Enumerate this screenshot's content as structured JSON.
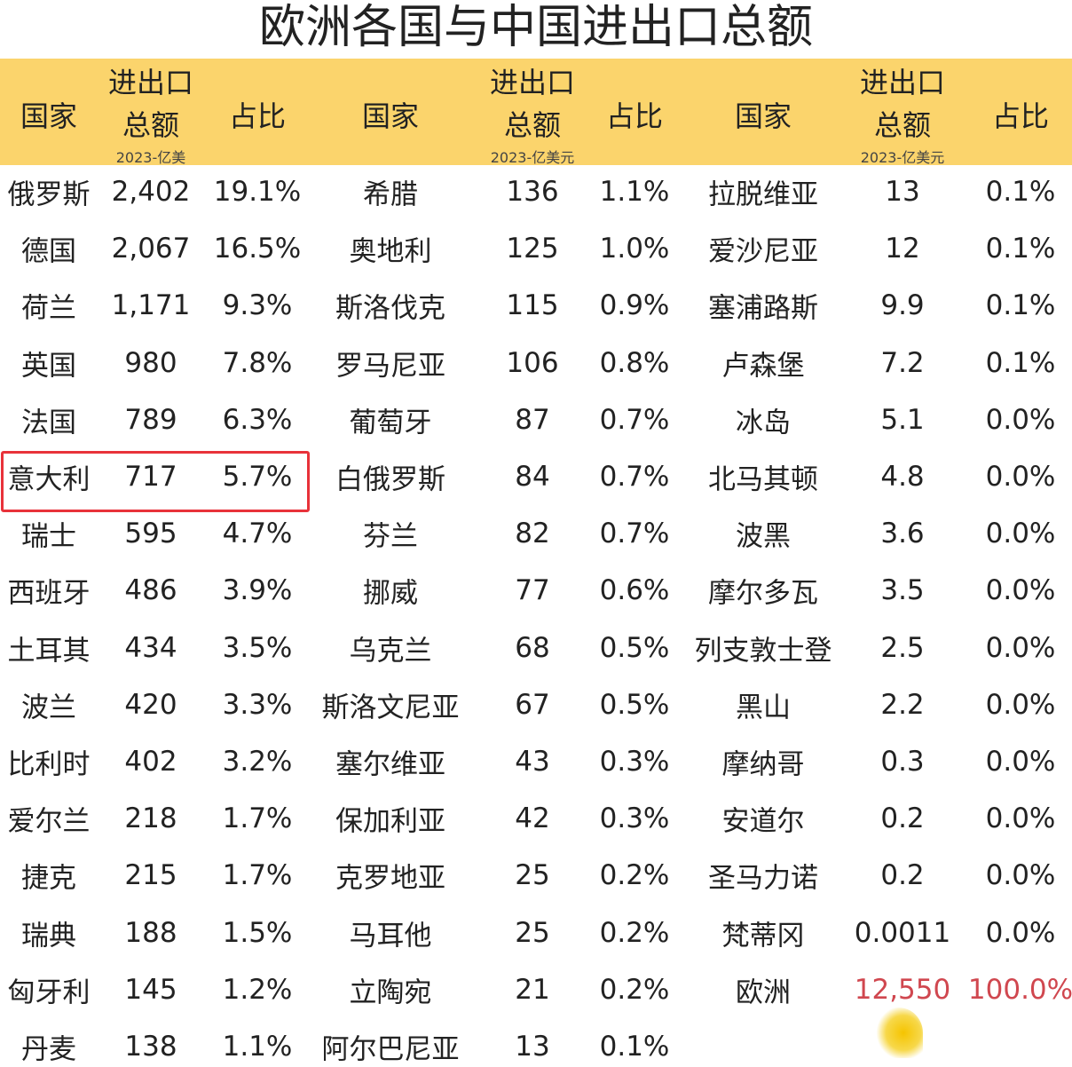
{
  "title": "欧洲各国与中国进出口总额",
  "header": {
    "country": "国家",
    "total_line1": "进出口",
    "total_line2": "总额",
    "share": "占比",
    "unit_1": "2023-亿美",
    "unit_2": "2023-亿美元",
    "unit_3": "2023-亿美元"
  },
  "colors": {
    "header_bg": "#fbd46c",
    "highlight": "#e8323a",
    "total_text": "#d0474f"
  },
  "chart_data": {
    "type": "table",
    "title": "欧洲各国与中国进出口总额",
    "columns": [
      "国家",
      "进出口总额 2023-亿美元",
      "占比"
    ],
    "highlighted_row": "意大利",
    "groups": [
      [
        [
          "俄罗斯",
          "2,402",
          "19.1%"
        ],
        [
          "德国",
          "2,067",
          "16.5%"
        ],
        [
          "荷兰",
          "1,171",
          "9.3%"
        ],
        [
          "英国",
          "980",
          "7.8%"
        ],
        [
          "法国",
          "789",
          "6.3%"
        ],
        [
          "意大利",
          "717",
          "5.7%"
        ],
        [
          "瑞士",
          "595",
          "4.7%"
        ],
        [
          "西班牙",
          "486",
          "3.9%"
        ],
        [
          "土耳其",
          "434",
          "3.5%"
        ],
        [
          "波兰",
          "420",
          "3.3%"
        ],
        [
          "比利时",
          "402",
          "3.2%"
        ],
        [
          "爱尔兰",
          "218",
          "1.7%"
        ],
        [
          "捷克",
          "215",
          "1.7%"
        ],
        [
          "瑞典",
          "188",
          "1.5%"
        ],
        [
          "匈牙利",
          "145",
          "1.2%"
        ],
        [
          "丹麦",
          "138",
          "1.1%"
        ]
      ],
      [
        [
          "希腊",
          "136",
          "1.1%"
        ],
        [
          "奥地利",
          "125",
          "1.0%"
        ],
        [
          "斯洛伐克",
          "115",
          "0.9%"
        ],
        [
          "罗马尼亚",
          "106",
          "0.8%"
        ],
        [
          "葡萄牙",
          "87",
          "0.7%"
        ],
        [
          "白俄罗斯",
          "84",
          "0.7%"
        ],
        [
          "芬兰",
          "82",
          "0.7%"
        ],
        [
          "挪威",
          "77",
          "0.6%"
        ],
        [
          "乌克兰",
          "68",
          "0.5%"
        ],
        [
          "斯洛文尼亚",
          "67",
          "0.5%"
        ],
        [
          "塞尔维亚",
          "43",
          "0.3%"
        ],
        [
          "保加利亚",
          "42",
          "0.3%"
        ],
        [
          "克罗地亚",
          "25",
          "0.2%"
        ],
        [
          "马耳他",
          "25",
          "0.2%"
        ],
        [
          "立陶宛",
          "21",
          "0.2%"
        ],
        [
          "阿尔巴尼亚",
          "13",
          "0.1%"
        ]
      ],
      [
        [
          "拉脱维亚",
          "13",
          "0.1%"
        ],
        [
          "爱沙尼亚",
          "12",
          "0.1%"
        ],
        [
          "塞浦路斯",
          "9.9",
          "0.1%"
        ],
        [
          "卢森堡",
          "7.2",
          "0.1%"
        ],
        [
          "冰岛",
          "5.1",
          "0.0%"
        ],
        [
          "北马其顿",
          "4.8",
          "0.0%"
        ],
        [
          "波黑",
          "3.6",
          "0.0%"
        ],
        [
          "摩尔多瓦",
          "3.5",
          "0.0%"
        ],
        [
          "列支敦士登",
          "2.5",
          "0.0%"
        ],
        [
          "黑山",
          "2.2",
          "0.0%"
        ],
        [
          "摩纳哥",
          "0.3",
          "0.0%"
        ],
        [
          "安道尔",
          "0.2",
          "0.0%"
        ],
        [
          "圣马力诺",
          "0.2",
          "0.0%"
        ],
        [
          "梵蒂冈",
          "0.0011",
          "0.0%"
        ],
        [
          "欧洲",
          "12,550",
          "100.0%"
        ]
      ]
    ]
  }
}
